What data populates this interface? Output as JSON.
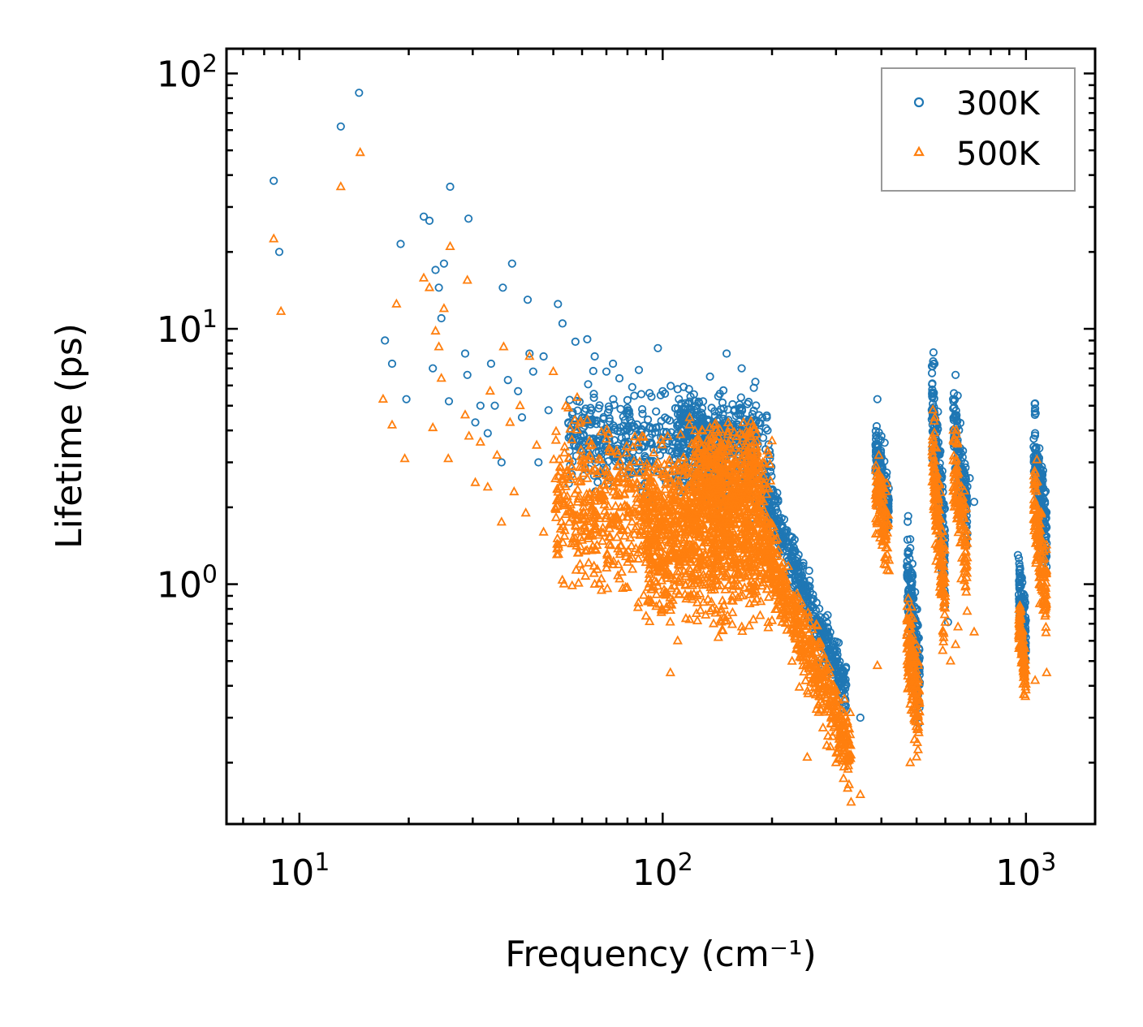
{
  "chart_data": {
    "type": "scatter",
    "title": "",
    "xlabel": "Frequency (cm⁻¹)",
    "ylabel": "Lifetime (ps)",
    "xscale": "log",
    "yscale": "log",
    "xlim": [
      6.3,
      1550
    ],
    "ylim": [
      0.115,
      125
    ],
    "xticks": [
      {
        "value": 10,
        "base": "10",
        "exp": "1"
      },
      {
        "value": 100,
        "base": "10",
        "exp": "2"
      },
      {
        "value": 1000,
        "base": "10",
        "exp": "3"
      }
    ],
    "yticks": [
      {
        "value": 1,
        "base": "10",
        "exp": "0"
      },
      {
        "value": 10,
        "base": "10",
        "exp": "1"
      },
      {
        "value": 100,
        "base": "10",
        "exp": "2"
      }
    ],
    "legend_position": "top-right",
    "series": [
      {
        "name": "300K",
        "marker": "circle",
        "color": "#1f77b4",
        "points": [
          [
            8.5,
            38
          ],
          [
            8.8,
            20
          ],
          [
            13,
            62
          ],
          [
            14.6,
            84
          ],
          [
            17.2,
            9.0
          ],
          [
            18,
            7.3
          ],
          [
            19,
            21.5
          ],
          [
            19.7,
            5.3
          ],
          [
            22,
            27.5
          ],
          [
            22.8,
            26.5
          ],
          [
            23.3,
            7.0
          ],
          [
            23.7,
            17
          ],
          [
            24.2,
            14.5
          ],
          [
            24.6,
            11
          ],
          [
            25,
            18
          ],
          [
            25.8,
            5.2
          ],
          [
            26,
            36
          ],
          [
            28.6,
            8.0
          ],
          [
            29,
            6.6
          ],
          [
            29.2,
            27
          ],
          [
            30.5,
            4.3
          ],
          [
            31.5,
            5.0
          ],
          [
            33,
            3.9
          ],
          [
            33.7,
            7.3
          ],
          [
            34.5,
            5.0
          ],
          [
            36,
            3.0
          ],
          [
            36.3,
            14.5
          ],
          [
            37.5,
            6.3
          ],
          [
            38.5,
            18
          ],
          [
            40,
            5.7
          ],
          [
            41,
            4.5
          ],
          [
            42.5,
            13
          ],
          [
            43,
            8.0
          ],
          [
            44,
            6.8
          ],
          [
            45.5,
            3.0
          ],
          [
            47,
            7.8
          ],
          [
            48.5,
            4.8
          ],
          [
            51.5,
            12.5
          ],
          [
            53,
            10.5
          ],
          [
            55,
            4.3
          ],
          [
            57.5,
            8.9
          ],
          [
            62,
            9.1
          ],
          [
            65,
            7.8
          ],
          [
            70,
            6.8
          ],
          [
            73,
            7.3
          ],
          [
            76,
            6.4
          ],
          [
            80,
            4.9
          ],
          [
            86,
            6.9
          ],
          [
            92,
            5.6
          ],
          [
            97,
            8.4
          ],
          [
            100,
            5.7
          ],
          [
            110,
            5.8
          ],
          [
            118,
            4.4
          ],
          [
            135,
            6.5
          ],
          [
            150,
            8.0
          ],
          [
            165,
            7.0
          ],
          [
            180,
            6.2
          ],
          [
            320,
            0.32
          ],
          [
            350,
            0.3
          ],
          [
            390,
            5.3
          ],
          [
            400,
            3.8
          ],
          [
            480,
            1.5
          ],
          [
            560,
            7.3
          ],
          [
            610,
            0.71
          ],
          [
            640,
            6.6
          ],
          [
            700,
            2.6
          ],
          [
            720,
            2.1
          ],
          [
            950,
            1.3
          ],
          [
            1060,
            5.1
          ],
          [
            1100,
            2.4
          ]
        ],
        "clusters": [
          {
            "x": [
              55,
              200
            ],
            "y_center": [
              3.8,
              3.0
            ],
            "y_spread": 0.18,
            "count": 560
          },
          {
            "x": [
              110,
              185
            ],
            "y_center": [
              4.2,
              4.0
            ],
            "y_spread": 0.12,
            "count": 260
          },
          {
            "x": [
              190,
              320
            ],
            "y_center": [
              2.3,
              0.38
            ],
            "y_spread": 0.1,
            "count": 420
          },
          {
            "x": [
              385,
              420
            ],
            "y_center": [
              3.2,
              2.0
            ],
            "y_spread": 0.13,
            "count": 140
          },
          {
            "x": [
              470,
              510
            ],
            "y_center": [
              1.1,
              0.42
            ],
            "y_spread": 0.2,
            "count": 160
          },
          {
            "x": [
              550,
              600
            ],
            "y_center": [
              5.5,
              1.2
            ],
            "y_spread": 0.2,
            "count": 180
          },
          {
            "x": [
              630,
              690
            ],
            "y_center": [
              4.8,
              1.8
            ],
            "y_spread": 0.16,
            "count": 130
          },
          {
            "x": [
              955,
              1000
            ],
            "y_center": [
              1.0,
              0.62
            ],
            "y_spread": 0.12,
            "count": 110
          },
          {
            "x": [
              1050,
              1140
            ],
            "y_center": [
              3.6,
              1.5
            ],
            "y_spread": 0.16,
            "count": 170
          }
        ]
      },
      {
        "name": "500K",
        "marker": "triangle",
        "color": "#ff7f0e",
        "points": [
          [
            8.5,
            22.5
          ],
          [
            8.9,
            11.7
          ],
          [
            13,
            36
          ],
          [
            14.7,
            49
          ],
          [
            17,
            5.3
          ],
          [
            18,
            4.2
          ],
          [
            18.5,
            12.5
          ],
          [
            19.5,
            3.1
          ],
          [
            22,
            15.8
          ],
          [
            22.8,
            14.5
          ],
          [
            23.3,
            4.1
          ],
          [
            23.7,
            9.8
          ],
          [
            24.2,
            8.5
          ],
          [
            24.6,
            6.4
          ],
          [
            25,
            12
          ],
          [
            25.7,
            3.1
          ],
          [
            26,
            21
          ],
          [
            28.6,
            4.6
          ],
          [
            29,
            15.5
          ],
          [
            29.3,
            3.8
          ],
          [
            30.5,
            2.5
          ],
          [
            31.5,
            3.6
          ],
          [
            33,
            2.4
          ],
          [
            33.5,
            5.7
          ],
          [
            35,
            3.2
          ],
          [
            36,
            1.75
          ],
          [
            36.5,
            8.5
          ],
          [
            38,
            4.3
          ],
          [
            39,
            2.3
          ],
          [
            40.5,
            5.0
          ],
          [
            42,
            1.9
          ],
          [
            43,
            7.8
          ],
          [
            45,
            3.5
          ],
          [
            47,
            1.6
          ],
          [
            50,
            6.8
          ],
          [
            52,
            2.4
          ],
          [
            55,
            4.9
          ],
          [
            58,
            1.8
          ],
          [
            62,
            4.4
          ],
          [
            65,
            1.0
          ],
          [
            70,
            3.7
          ],
          [
            75,
            2.9
          ],
          [
            80,
            0.97
          ],
          [
            85,
            2.5
          ],
          [
            90,
            0.75
          ],
          [
            97,
            3.0
          ],
          [
            105,
            0.45
          ],
          [
            110,
            0.6
          ],
          [
            150,
            0.72
          ],
          [
            180,
            0.95
          ],
          [
            200,
            0.72
          ],
          [
            250,
            0.21
          ],
          [
            300,
            0.2
          ],
          [
            330,
            0.14
          ],
          [
            350,
            0.15
          ],
          [
            390,
            0.48
          ],
          [
            480,
            0.2
          ],
          [
            590,
            0.55
          ],
          [
            620,
            0.5
          ],
          [
            640,
            0.58
          ],
          [
            650,
            0.68
          ],
          [
            720,
            0.65
          ],
          [
            1060,
            0.42
          ],
          [
            1140,
            0.45
          ]
        ],
        "clusters": [
          {
            "x": [
              50,
              200
            ],
            "y_center": [
              2.2,
              1.6
            ],
            "y_spread": 0.3,
            "count": 900
          },
          {
            "x": [
              90,
              190
            ],
            "y_center": [
              1.5,
              1.6
            ],
            "y_spread": 0.32,
            "count": 700
          },
          {
            "x": [
              120,
              185
            ],
            "y_center": [
              2.6,
              2.8
            ],
            "y_spread": 0.18,
            "count": 320
          },
          {
            "x": [
              190,
              330
            ],
            "y_center": [
              1.4,
              0.22
            ],
            "y_spread": 0.14,
            "count": 520
          },
          {
            "x": [
              385,
              420
            ],
            "y_center": [
              2.4,
              1.5
            ],
            "y_spread": 0.15,
            "count": 120
          },
          {
            "x": [
              470,
              510
            ],
            "y_center": [
              0.62,
              0.3
            ],
            "y_spread": 0.2,
            "count": 150
          },
          {
            "x": [
              550,
              600
            ],
            "y_center": [
              3.4,
              0.8
            ],
            "y_spread": 0.2,
            "count": 170
          },
          {
            "x": [
              630,
              690
            ],
            "y_center": [
              3.1,
              1.2
            ],
            "y_spread": 0.17,
            "count": 120
          },
          {
            "x": [
              955,
              1000
            ],
            "y_center": [
              0.75,
              0.43
            ],
            "y_spread": 0.1,
            "count": 100
          },
          {
            "x": [
              1050,
              1140
            ],
            "y_center": [
              2.2,
              0.85
            ],
            "y_spread": 0.17,
            "count": 160
          }
        ]
      }
    ]
  }
}
